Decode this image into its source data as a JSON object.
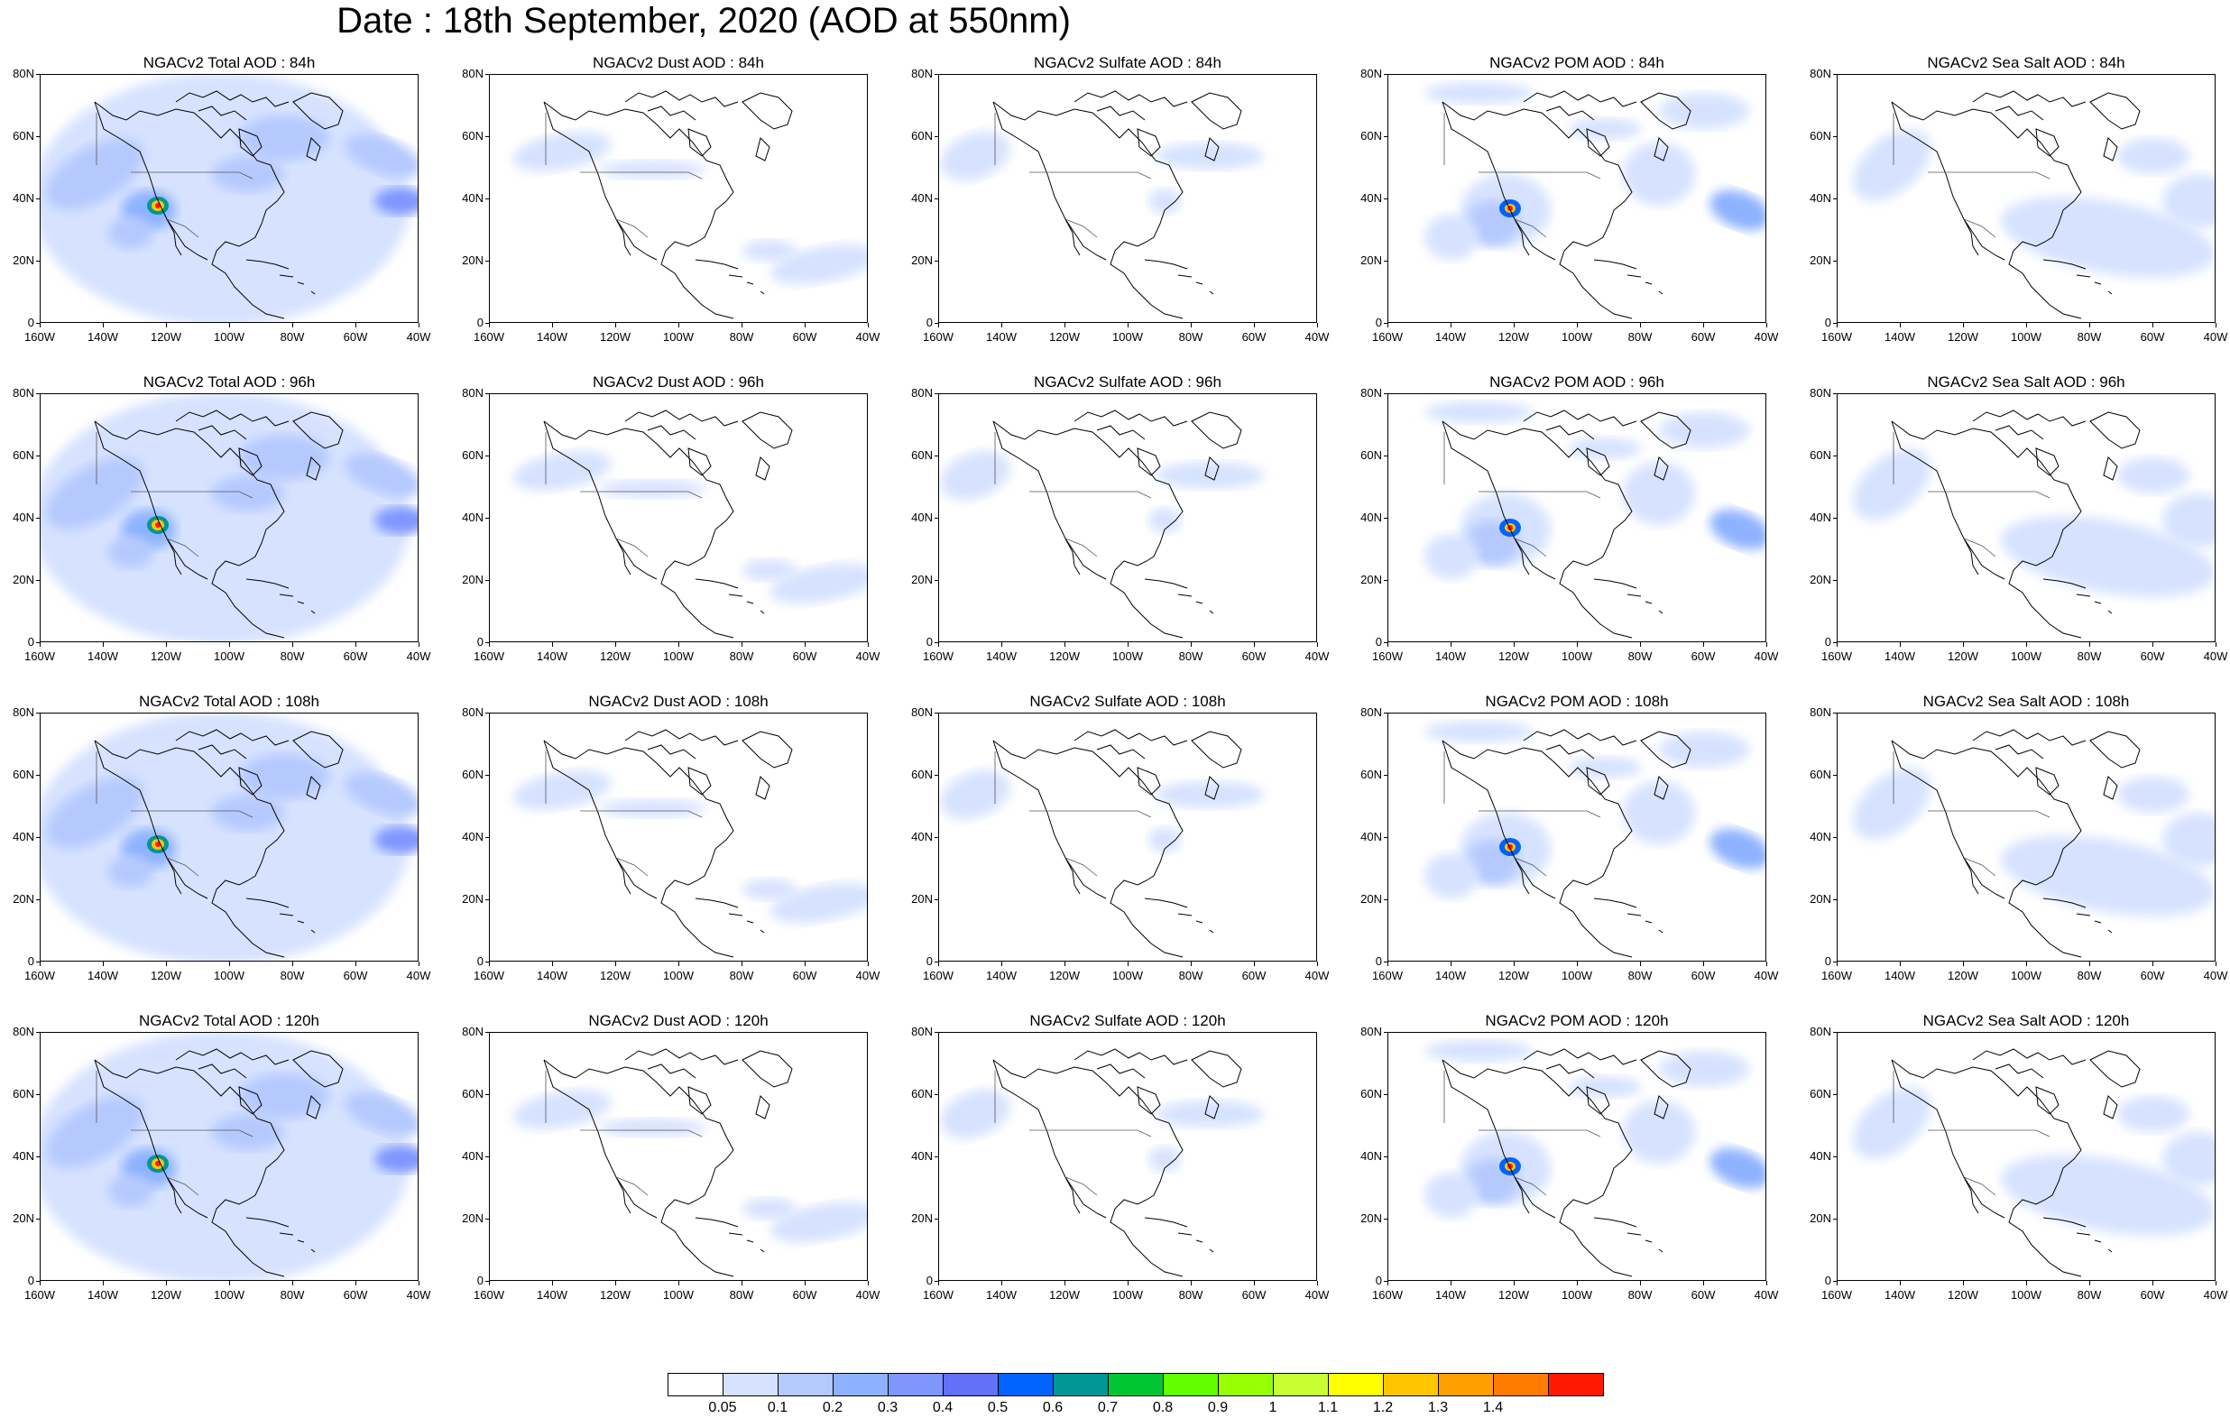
{
  "title": "Date : 18th September, 2020 (AOD at 550nm)",
  "lat_labels": [
    "80N",
    "60N",
    "40N",
    "20N",
    "0"
  ],
  "lon_labels": [
    "160W",
    "140W",
    "120W",
    "100W",
    "80W",
    "60W",
    "40W"
  ],
  "colorbar": {
    "colors": [
      "#ffffff",
      "#d6e2ff",
      "#b5c9ff",
      "#8eb2ff",
      "#7f96ff",
      "#6370f8",
      "#0063ff",
      "#009696",
      "#00c633",
      "#63ff00",
      "#96ff00",
      "#c6ff33",
      "#ffff00",
      "#ffc600",
      "#ffa000",
      "#ff7c00",
      "#ff1900"
    ],
    "labels": [
      "0.05",
      "0.1",
      "0.2",
      "0.3",
      "0.4",
      "0.5",
      "0.6",
      "0.7",
      "0.8",
      "0.9",
      "1",
      "1.1",
      "1.2",
      "1.3",
      "1.4"
    ]
  },
  "panels": [
    {
      "title": "NGACv2 Total AOD : 84h",
      "type": "total",
      "hour": 84
    },
    {
      "title": "NGACv2 Dust AOD : 84h",
      "type": "dust",
      "hour": 84
    },
    {
      "title": "NGACv2 Sulfate AOD : 84h",
      "type": "sulfate",
      "hour": 84
    },
    {
      "title": "NGACv2 POM AOD : 84h",
      "type": "pom",
      "hour": 84
    },
    {
      "title": "NGACv2 Sea Salt AOD : 84h",
      "type": "seasalt",
      "hour": 84
    },
    {
      "title": "NGACv2 Total AOD : 96h",
      "type": "total",
      "hour": 96
    },
    {
      "title": "NGACv2 Dust AOD : 96h",
      "type": "dust",
      "hour": 96
    },
    {
      "title": "NGACv2 Sulfate AOD : 96h",
      "type": "sulfate",
      "hour": 96
    },
    {
      "title": "NGACv2 POM AOD : 96h",
      "type": "pom",
      "hour": 96
    },
    {
      "title": "NGACv2 Sea Salt AOD : 96h",
      "type": "seasalt",
      "hour": 96
    },
    {
      "title": "NGACv2 Total AOD : 108h",
      "type": "total",
      "hour": 108
    },
    {
      "title": "NGACv2 Dust AOD : 108h",
      "type": "dust",
      "hour": 108
    },
    {
      "title": "NGACv2 Sulfate AOD : 108h",
      "type": "sulfate",
      "hour": 108
    },
    {
      "title": "NGACv2 POM AOD : 108h",
      "type": "pom",
      "hour": 108
    },
    {
      "title": "NGACv2 Sea Salt AOD : 108h",
      "type": "seasalt",
      "hour": 108
    },
    {
      "title": "NGACv2 Total AOD : 120h",
      "type": "total",
      "hour": 120
    },
    {
      "title": "NGACv2 Dust AOD : 120h",
      "type": "dust",
      "hour": 120
    },
    {
      "title": "NGACv2 Sulfate AOD : 120h",
      "type": "sulfate",
      "hour": 120
    },
    {
      "title": "NGACv2 POM AOD : 120h",
      "type": "pom",
      "hour": 120
    },
    {
      "title": "NGACv2 Sea Salt  AOD : 120h",
      "type": "seasalt",
      "hour": 120
    }
  ]
}
